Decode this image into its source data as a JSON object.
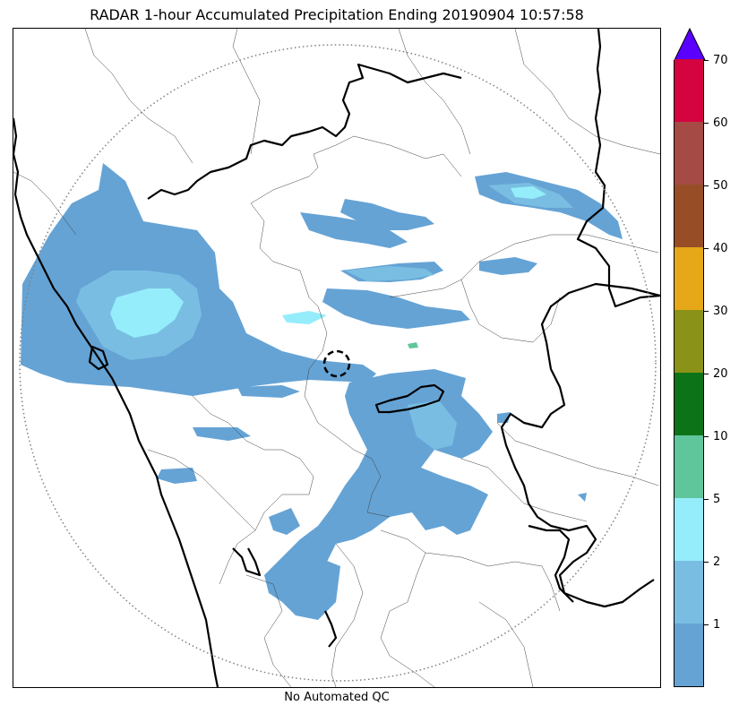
{
  "title": "RADAR 1-hour Accumulated Precipitation Ending 20190904 10:57:58",
  "footer": "No Automated QC",
  "colorbar": {
    "ticks": [
      "1",
      "2",
      "5",
      "10",
      "20",
      "30",
      "40",
      "50",
      "60",
      "70"
    ],
    "levels": [
      {
        "color": "#65a3d5"
      },
      {
        "color": "#79bee2"
      },
      {
        "color": "#95edfb"
      },
      {
        "color": "#5fc69c"
      },
      {
        "color": "#0d7319"
      },
      {
        "color": "#8b9218"
      },
      {
        "color": "#e6a818"
      },
      {
        "color": "#974e26"
      },
      {
        "color": "#a54a44"
      },
      {
        "color": "#d30440"
      }
    ],
    "extend_color": "#5a00ff"
  },
  "colors": {
    "range_ring": "#808080",
    "state_border": "#000000",
    "district_border": "#404040"
  }
}
